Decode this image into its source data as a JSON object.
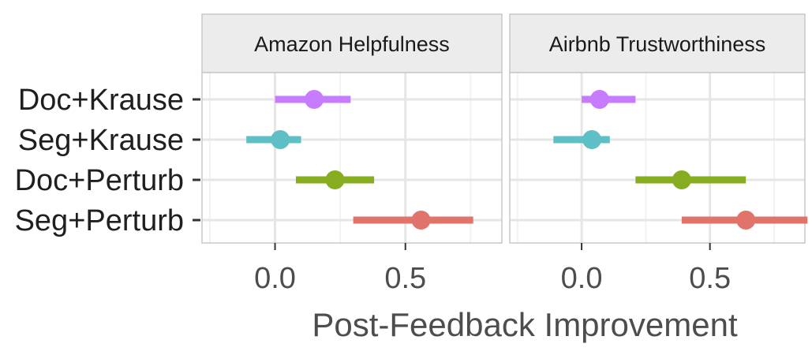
{
  "chart_data": {
    "type": "pointrange",
    "categories": [
      "Doc+Krause",
      "Seg+Krause",
      "Doc+Perturb",
      "Seg+Perturb"
    ],
    "xlabel": "Post-Feedback Improvement",
    "x_ticks": [
      "0.0",
      "0.5"
    ],
    "x_tick_values": [
      0.0,
      0.5
    ],
    "xlim": [
      -0.28,
      0.87
    ],
    "colors": [
      "#c77cff",
      "#5fbfc6",
      "#86ad1f",
      "#e0736a"
    ],
    "panels": [
      {
        "title": "Amazon Helpfulness",
        "points": [
          {
            "category": "Doc+Krause",
            "estimate": 0.15,
            "low": 0.0,
            "high": 0.29
          },
          {
            "category": "Seg+Krause",
            "estimate": 0.02,
            "low": -0.11,
            "high": 0.1
          },
          {
            "category": "Doc+Perturb",
            "estimate": 0.23,
            "low": 0.08,
            "high": 0.38
          },
          {
            "category": "Seg+Perturb",
            "estimate": 0.56,
            "low": 0.3,
            "high": 0.76
          }
        ]
      },
      {
        "title": "Airbnb Trustworthiness",
        "points": [
          {
            "category": "Doc+Krause",
            "estimate": 0.07,
            "low": 0.0,
            "high": 0.21
          },
          {
            "category": "Seg+Krause",
            "estimate": 0.04,
            "low": -0.11,
            "high": 0.11
          },
          {
            "category": "Doc+Perturb",
            "estimate": 0.39,
            "low": 0.21,
            "high": 0.64
          },
          {
            "category": "Seg+Perturb",
            "estimate": 0.64,
            "low": 0.39,
            "high": 0.88
          }
        ]
      }
    ],
    "grid": true,
    "legend": "none"
  }
}
